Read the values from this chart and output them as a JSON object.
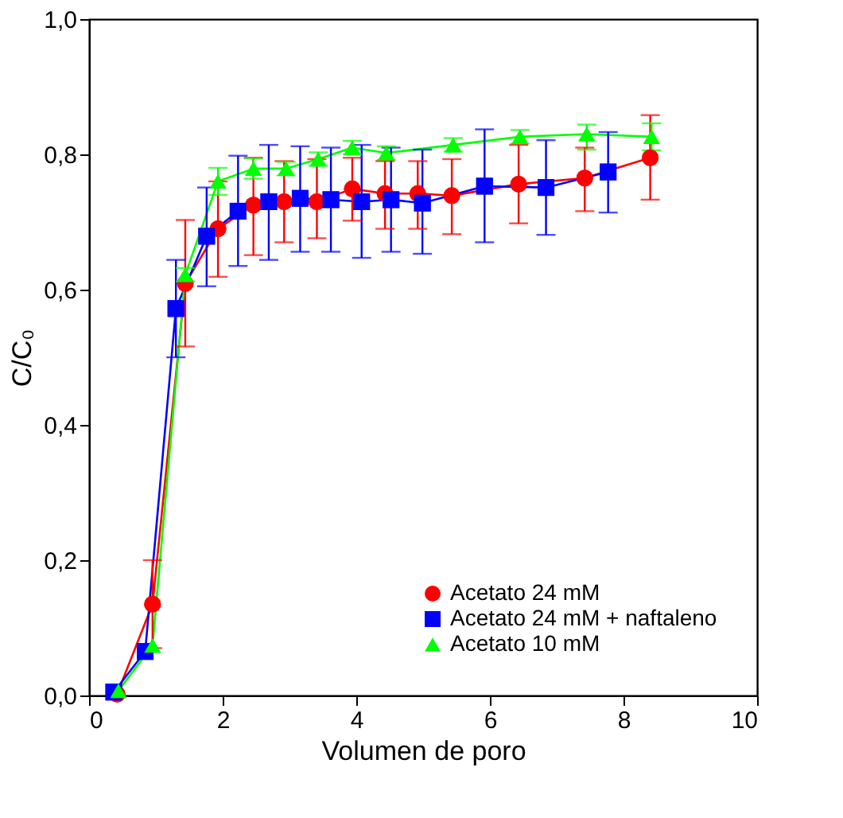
{
  "chart_data": {
    "type": "line",
    "xlabel": "Volumen de poro",
    "ylabel": "C/C₀",
    "xlim": [
      0,
      10
    ],
    "xticks": [
      0,
      2,
      4,
      6,
      8,
      10
    ],
    "ylim": [
      0,
      1
    ],
    "yticks": [
      {
        "value": 0,
        "label": "0,0"
      },
      {
        "value": 0.2,
        "label": "0,2"
      },
      {
        "value": 0.4,
        "label": "0,4"
      },
      {
        "value": 0.6,
        "label": "0,6"
      },
      {
        "value": 0.8,
        "label": "0,8"
      },
      {
        "value": 1,
        "label": "1,0"
      }
    ],
    "grid": false,
    "legend": "bottom right",
    "line_style": "solid",
    "series": [
      {
        "name": "Acetato 24 mM",
        "color": "#ff0000",
        "marker": "circle",
        "x": [
          0.42,
          0.95,
          1.44,
          1.93,
          2.46,
          2.92,
          3.41,
          3.94,
          4.43,
          4.92,
          5.43,
          6.43,
          7.42,
          8.4
        ],
        "values": [
          0.002,
          0.135,
          0.609,
          0.69,
          0.725,
          0.73,
          0.73,
          0.749,
          0.742,
          0.742,
          0.739,
          0.756,
          0.765,
          0.795
        ],
        "errors": [
          null,
          [
            0.07,
            0.2
          ],
          [
            0.516,
            0.703
          ],
          [
            0.619,
            0.76
          ],
          [
            0.651,
            0.795
          ],
          [
            0.67,
            0.79
          ],
          [
            0.676,
            0.793
          ],
          [
            0.702,
            0.795
          ],
          [
            0.69,
            0.79
          ],
          [
            0.69,
            0.79
          ],
          [
            0.682,
            0.793
          ],
          [
            0.698,
            0.814
          ],
          [
            0.716,
            0.81
          ],
          [
            0.733,
            0.858
          ]
        ]
      },
      {
        "name": "Acetato 24 mM + naftaleno",
        "color": "#0000ff",
        "marker": "square",
        "x": [
          0.37,
          0.84,
          1.3,
          1.76,
          2.23,
          2.69,
          3.16,
          3.62,
          4.08,
          4.52,
          4.99,
          5.92,
          6.84,
          7.77
        ],
        "values": [
          0.005,
          0.065,
          0.572,
          0.679,
          0.716,
          0.73,
          0.735,
          0.733,
          0.73,
          0.733,
          0.728,
          0.753,
          0.751,
          0.774
        ],
        "errors": [
          null,
          null,
          [
            0.5,
            0.644
          ],
          [
            0.605,
            0.751
          ],
          [
            0.635,
            0.798
          ],
          [
            0.644,
            0.814
          ],
          [
            0.656,
            0.812
          ],
          [
            0.656,
            0.81
          ],
          [
            0.647,
            0.814
          ],
          [
            0.656,
            0.81
          ],
          [
            0.653,
            0.807
          ],
          [
            0.67,
            0.837
          ],
          [
            0.681,
            0.821
          ],
          [
            0.714,
            0.833
          ]
        ]
      },
      {
        "name": "Acetato 10 mM",
        "color": "#00ff00",
        "marker": "triangle",
        "x": [
          0.44,
          0.95,
          1.44,
          1.93,
          2.46,
          2.95,
          3.43,
          3.94,
          4.45,
          5.45,
          6.45,
          7.45,
          8.42
        ],
        "values": [
          0.007,
          0.074,
          0.622,
          0.76,
          0.779,
          0.779,
          0.793,
          0.81,
          0.802,
          0.814,
          0.826,
          0.83,
          0.826
        ],
        "errors": [
          null,
          null,
          [
            0.612,
            0.632
          ],
          [
            0.74,
            0.78
          ],
          [
            0.764,
            0.794
          ],
          [
            0.769,
            0.789
          ],
          [
            0.783,
            0.803
          ],
          [
            0.8,
            0.82
          ],
          [
            0.792,
            0.812
          ],
          [
            0.804,
            0.824
          ],
          [
            0.816,
            0.836
          ],
          [
            0.807,
            0.844
          ],
          [
            0.806,
            0.846
          ]
        ]
      }
    ]
  }
}
